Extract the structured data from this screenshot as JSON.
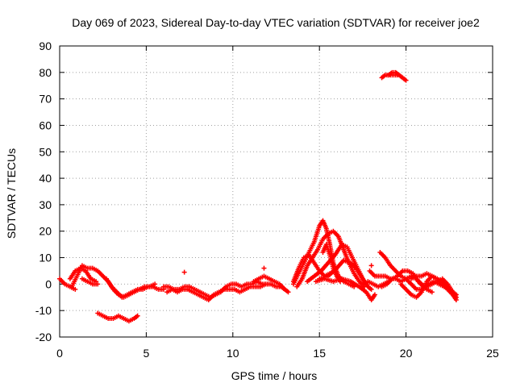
{
  "chart_data": {
    "type": "scatter",
    "title": "Day 069 of 2023, Sidereal Day-to-day VTEC variation (SDTVAR) for receiver joe2",
    "xlabel": "GPS time / hours",
    "ylabel": "SDTVAR / TECUs",
    "xlim": [
      0,
      25
    ],
    "ylim": [
      -20,
      90
    ],
    "x_ticks": [
      0,
      5,
      10,
      15,
      20,
      25
    ],
    "y_ticks": [
      -20,
      -10,
      0,
      10,
      20,
      30,
      40,
      50,
      60,
      70,
      80,
      90
    ],
    "grid": true,
    "marker": "+",
    "series": [
      {
        "name": "SDTVAR",
        "color": "#ff0000",
        "tracks": [
          [
            [
              0.0,
              2
            ],
            [
              0.3,
              0
            ],
            [
              0.6,
              -1
            ],
            [
              0.9,
              -2
            ]
          ],
          [
            [
              0.6,
              2
            ],
            [
              0.9,
              5
            ],
            [
              1.2,
              6
            ],
            [
              1.5,
              5
            ],
            [
              1.8,
              2
            ],
            [
              2.1,
              1
            ]
          ],
          [
            [
              0.7,
              -1
            ],
            [
              1.0,
              3
            ],
            [
              1.3,
              7
            ],
            [
              1.6,
              6
            ],
            [
              1.9,
              6
            ],
            [
              2.2,
              5
            ],
            [
              2.5,
              3
            ],
            [
              2.8,
              1
            ],
            [
              3.1,
              -2
            ],
            [
              3.4,
              -4
            ],
            [
              3.7,
              -5
            ],
            [
              4.0,
              -4
            ],
            [
              4.3,
              -3
            ],
            [
              4.6,
              -2
            ],
            [
              4.9,
              -1
            ],
            [
              5.2,
              -1
            ],
            [
              5.5,
              0
            ]
          ],
          [
            [
              1.3,
              2
            ],
            [
              1.6,
              1
            ],
            [
              1.9,
              0
            ],
            [
              2.2,
              0
            ]
          ],
          [
            [
              2.2,
              -11
            ],
            [
              2.5,
              -12
            ],
            [
              2.8,
              -13
            ],
            [
              3.1,
              -13
            ],
            [
              3.4,
              -12
            ],
            [
              3.7,
              -13
            ],
            [
              4.0,
              -14
            ],
            [
              4.3,
              -13
            ],
            [
              4.5,
              -12
            ]
          ],
          [
            [
              2.7,
              2
            ],
            [
              3.0,
              -1
            ],
            [
              3.3,
              -3
            ],
            [
              3.6,
              -5
            ],
            [
              3.9,
              -4
            ],
            [
              4.2,
              -3
            ],
            [
              4.5,
              -2
            ],
            [
              4.8,
              -2
            ],
            [
              5.1,
              -1
            ],
            [
              5.4,
              -1
            ],
            [
              5.7,
              -2
            ],
            [
              6.0,
              -2
            ]
          ],
          [
            [
              6.0,
              -1
            ],
            [
              6.3,
              -1
            ],
            [
              6.6,
              -2
            ],
            [
              6.9,
              -2
            ],
            [
              7.2,
              -1
            ],
            [
              7.5,
              -1
            ],
            [
              7.8,
              -2
            ],
            [
              8.1,
              -3
            ],
            [
              8.4,
              -4
            ],
            [
              8.7,
              -5
            ],
            [
              9.0,
              -4
            ],
            [
              9.3,
              -3
            ],
            [
              9.6,
              -1
            ],
            [
              9.9,
              0
            ],
            [
              10.2,
              0
            ],
            [
              10.5,
              -1
            ],
            [
              10.8,
              0
            ],
            [
              11.1,
              0
            ],
            [
              11.4,
              1
            ],
            [
              11.7,
              0
            ],
            [
              12.0,
              0
            ]
          ],
          [
            [
              6.2,
              -3
            ],
            [
              6.5,
              -2
            ],
            [
              6.8,
              -3
            ],
            [
              7.1,
              -2
            ],
            [
              7.4,
              -2
            ],
            [
              7.7,
              -3
            ],
            [
              8.0,
              -4
            ],
            [
              8.3,
              -5
            ],
            [
              8.6,
              -6
            ],
            [
              8.9,
              -4
            ],
            [
              9.2,
              -3
            ],
            [
              9.5,
              -2
            ],
            [
              9.8,
              -2
            ],
            [
              10.1,
              -2
            ],
            [
              10.4,
              -3
            ],
            [
              10.7,
              -2
            ],
            [
              11.0,
              -1
            ],
            [
              11.3,
              -1
            ],
            [
              11.6,
              -1
            ],
            [
              11.9,
              0
            ],
            [
              12.2,
              0
            ],
            [
              12.5,
              -1
            ],
            [
              12.8,
              -1
            ],
            [
              13.0,
              -2
            ]
          ],
          [
            [
              7.2,
              4.5
            ]
          ],
          [
            [
              11.8,
              6
            ]
          ],
          [
            [
              11.2,
              1
            ],
            [
              11.5,
              2
            ],
            [
              11.8,
              3
            ],
            [
              12.1,
              2
            ],
            [
              12.4,
              1
            ],
            [
              12.7,
              0
            ],
            [
              13.0,
              -2
            ],
            [
              13.2,
              -3
            ]
          ],
          [
            [
              13.5,
              0
            ],
            [
              13.8,
              4
            ],
            [
              14.1,
              8
            ],
            [
              14.4,
              12
            ],
            [
              14.7,
              16
            ],
            [
              15.0,
              22
            ],
            [
              15.2,
              24
            ],
            [
              15.4,
              21
            ],
            [
              15.6,
              15
            ],
            [
              15.8,
              8
            ],
            [
              16.1,
              3
            ],
            [
              16.4,
              1
            ],
            [
              16.7,
              0
            ],
            [
              17.0,
              -1
            ]
          ],
          [
            [
              13.7,
              -1
            ],
            [
              14.0,
              2
            ],
            [
              14.3,
              7
            ],
            [
              14.6,
              10
            ],
            [
              14.9,
              13
            ],
            [
              15.2,
              17
            ],
            [
              15.5,
              19
            ],
            [
              15.8,
              20
            ],
            [
              16.1,
              18
            ],
            [
              16.4,
              13
            ],
            [
              16.7,
              8
            ],
            [
              17.0,
              4
            ],
            [
              17.3,
              1
            ],
            [
              17.6,
              -1
            ]
          ],
          [
            [
              13.5,
              1
            ],
            [
              13.8,
              6
            ],
            [
              14.1,
              10
            ],
            [
              14.4,
              11
            ],
            [
              14.7,
              8
            ],
            [
              15.0,
              5
            ],
            [
              15.3,
              3
            ],
            [
              15.6,
              4
            ],
            [
              15.9,
              5
            ]
          ],
          [
            [
              14.3,
              1
            ],
            [
              14.7,
              3
            ],
            [
              15.1,
              5
            ],
            [
              15.5,
              8
            ],
            [
              15.9,
              11
            ],
            [
              16.3,
              15
            ],
            [
              16.6,
              14
            ],
            [
              16.9,
              10
            ],
            [
              17.2,
              6
            ],
            [
              17.5,
              2
            ],
            [
              17.8,
              -1
            ],
            [
              18.0,
              -2
            ]
          ],
          [
            [
              15.0,
              2
            ],
            [
              15.5,
              3
            ],
            [
              16.0,
              6
            ],
            [
              16.4,
              9
            ],
            [
              16.8,
              8
            ],
            [
              17.1,
              6
            ],
            [
              17.4,
              3
            ],
            [
              17.7,
              0
            ]
          ],
          [
            [
              14.8,
              1
            ],
            [
              15.3,
              2
            ],
            [
              15.8,
              1
            ],
            [
              16.3,
              2
            ],
            [
              16.8,
              1
            ],
            [
              17.3,
              -1
            ],
            [
              17.7,
              -3
            ],
            [
              18.0,
              -6
            ],
            [
              18.2,
              -4
            ]
          ],
          [
            [
              15.2,
              12
            ],
            [
              15.4,
              15
            ],
            [
              15.6,
              11
            ],
            [
              15.8,
              6
            ],
            [
              16.0,
              3
            ],
            [
              16.2,
              1
            ]
          ],
          [
            [
              17.8,
              1
            ],
            [
              18.1,
              0
            ],
            [
              18.4,
              -1
            ],
            [
              18.7,
              0
            ],
            [
              19.0,
              1
            ]
          ],
          [
            [
              17.9,
              5
            ],
            [
              18.2,
              3
            ],
            [
              18.5,
              3
            ],
            [
              18.8,
              3
            ],
            [
              19.1,
              2
            ],
            [
              19.4,
              2
            ],
            [
              19.7,
              1
            ],
            [
              20.0,
              2
            ],
            [
              20.3,
              3
            ],
            [
              20.6,
              2
            ],
            [
              20.9,
              0
            ],
            [
              21.2,
              -2
            ],
            [
              21.5,
              -3
            ]
          ],
          [
            [
              18.0,
              7
            ]
          ],
          [
            [
              18.5,
              12
            ],
            [
              18.8,
              10
            ],
            [
              19.1,
              7
            ],
            [
              19.4,
              5
            ],
            [
              19.7,
              3
            ],
            [
              20.0,
              2
            ],
            [
              20.3,
              0
            ],
            [
              20.6,
              -2
            ],
            [
              20.9,
              -2
            ],
            [
              21.2,
              -1
            ],
            [
              21.5,
              0
            ],
            [
              21.8,
              1
            ],
            [
              22.1,
              2
            ],
            [
              22.4,
              0
            ],
            [
              22.7,
              -3
            ],
            [
              22.9,
              -5
            ]
          ],
          [
            [
              18.6,
              -1
            ],
            [
              18.9,
              0
            ],
            [
              19.2,
              2
            ],
            [
              19.5,
              3
            ],
            [
              19.8,
              5
            ],
            [
              20.1,
              5
            ],
            [
              20.4,
              4
            ],
            [
              20.7,
              1
            ],
            [
              21.0,
              -1
            ],
            [
              21.3,
              0
            ],
            [
              21.6,
              1
            ],
            [
              21.9,
              0
            ],
            [
              22.2,
              -1
            ],
            [
              22.5,
              -2
            ],
            [
              22.8,
              -4
            ]
          ],
          [
            [
              19.7,
              0
            ],
            [
              20.0,
              -2
            ],
            [
              20.3,
              -4
            ],
            [
              20.6,
              -5
            ],
            [
              20.9,
              -3
            ],
            [
              21.2,
              1
            ],
            [
              21.5,
              3
            ],
            [
              21.8,
              2
            ],
            [
              22.1,
              0
            ],
            [
              22.4,
              -2
            ],
            [
              22.7,
              -4
            ],
            [
              22.9,
              -6
            ]
          ],
          [
            [
              20.3,
              2
            ],
            [
              20.6,
              3
            ],
            [
              20.9,
              3
            ],
            [
              21.2,
              4
            ],
            [
              21.5,
              3
            ],
            [
              21.8,
              2
            ],
            [
              22.1,
              1
            ],
            [
              22.4,
              -1
            ],
            [
              22.7,
              -3
            ],
            [
              22.9,
              -4
            ]
          ],
          [
            [
              19.0,
              79
            ],
            [
              19.2,
              80
            ],
            [
              19.4,
              80
            ],
            [
              19.6,
              79
            ],
            [
              19.8,
              78
            ],
            [
              20.0,
              77
            ]
          ],
          [
            [
              18.6,
              78
            ],
            [
              18.8,
              79
            ],
            [
              19.1,
              79
            ],
            [
              19.3,
              79
            ],
            [
              19.5,
              79
            ]
          ]
        ]
      }
    ]
  }
}
